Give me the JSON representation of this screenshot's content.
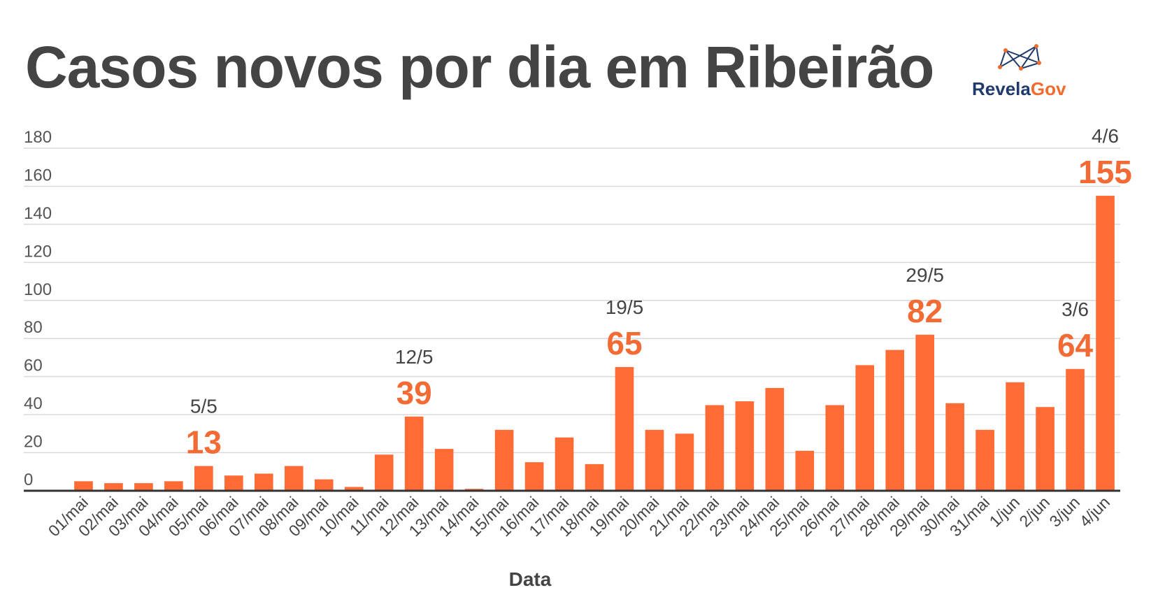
{
  "title": "Casos novos por dia em Ribeirão",
  "logo": {
    "part1": "Revela",
    "part2": "Gov"
  },
  "chart_data": {
    "type": "bar",
    "xlabel": "Data",
    "ylabel": "",
    "ylim": [
      0,
      180
    ],
    "yticks": [
      0,
      20,
      40,
      60,
      80,
      100,
      120,
      140,
      160,
      180
    ],
    "grid": true,
    "categories": [
      "01/mai",
      "02/mai",
      "03/mai",
      "04/mai",
      "05/mai",
      "06/mai",
      "07/mai",
      "08/mai",
      "09/mai",
      "10/mai",
      "11/mai",
      "12/mai",
      "13/mai",
      "14/mai",
      "15/mai",
      "16/mai",
      "17/mai",
      "18/mai",
      "19/mai",
      "20/mai",
      "21/mai",
      "22/mai",
      "23/mai",
      "24/mai",
      "25/mai",
      "26/mai",
      "27/mai",
      "28/mai",
      "29/mai",
      "30/mai",
      "31/mai",
      "1/jun",
      "2/jun",
      "3/jun",
      "4/jun"
    ],
    "values": [
      5,
      4,
      4,
      5,
      13,
      8,
      9,
      13,
      6,
      2,
      19,
      39,
      22,
      1,
      32,
      15,
      28,
      14,
      65,
      32,
      30,
      45,
      47,
      54,
      21,
      45,
      66,
      74,
      82,
      46,
      32,
      57,
      44,
      64,
      155
    ],
    "bar_color": "#ff6b35",
    "annotations": [
      {
        "index": 4,
        "date": "5/5",
        "value": "13"
      },
      {
        "index": 11,
        "date": "12/5",
        "value": "39"
      },
      {
        "index": 18,
        "date": "19/5",
        "value": "65"
      },
      {
        "index": 28,
        "date": "29/5",
        "value": "82"
      },
      {
        "index": 33,
        "date": "3/6",
        "value": "64"
      },
      {
        "index": 34,
        "date": "4/6",
        "value": "155"
      }
    ]
  }
}
